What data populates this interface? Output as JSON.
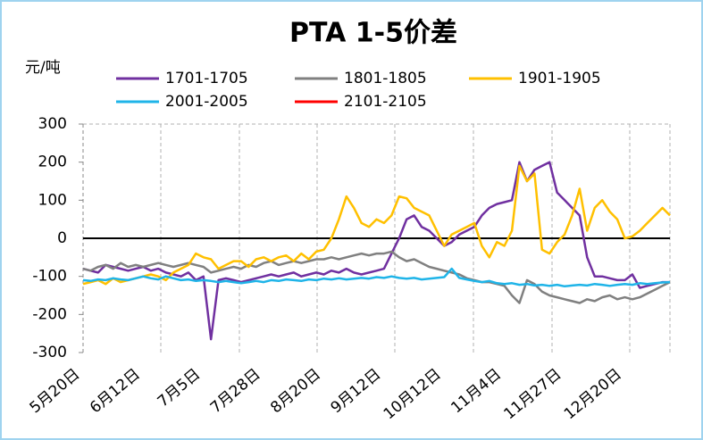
{
  "chart_data": {
    "type": "line",
    "title": "PTA 1-5价差",
    "y_label": "元/吨",
    "categories": [
      "5月20日",
      null,
      null,
      null,
      null,
      null,
      null,
      null,
      "6月12日",
      null,
      null,
      null,
      null,
      null,
      null,
      null,
      "7月5日",
      null,
      null,
      null,
      null,
      null,
      null,
      null,
      "7月28日",
      null,
      null,
      null,
      null,
      null,
      null,
      null,
      "8月20日",
      null,
      null,
      null,
      null,
      null,
      null,
      null,
      "9月12日",
      null,
      null,
      null,
      null,
      null,
      null,
      null,
      "10月12日",
      null,
      null,
      null,
      null,
      null,
      null,
      null,
      "11月4日",
      null,
      null,
      null,
      null,
      null,
      null,
      null,
      "11月27日",
      null,
      null,
      null,
      null,
      null,
      null,
      null,
      "12月20日",
      null,
      null,
      null,
      null,
      null,
      null
    ],
    "series": [
      {
        "name": "1701-1705",
        "color": "#7030a0",
        "values": [
          -80,
          -85,
          -90,
          -70,
          -75,
          -80,
          -85,
          -80,
          -75,
          -85,
          -80,
          -90,
          -95,
          -100,
          -90,
          -110,
          -100,
          -265,
          -110,
          -105,
          -110,
          -115,
          -110,
          -105,
          -100,
          -95,
          -100,
          -95,
          -90,
          -100,
          -95,
          -90,
          -95,
          -85,
          -90,
          -80,
          -90,
          -95,
          -90,
          -85,
          -80,
          -40,
          0,
          50,
          60,
          30,
          20,
          0,
          -20,
          -10,
          10,
          20,
          30,
          60,
          80,
          90,
          95,
          100,
          200,
          150,
          180,
          190,
          200,
          120,
          100,
          80,
          60,
          -50,
          -100,
          -100,
          -105,
          -110,
          -110,
          -95,
          -130,
          -125,
          -120,
          -115,
          -115
        ]
      },
      {
        "name": "1801-1805",
        "color": "#808080",
        "values": [
          -80,
          -85,
          -75,
          -70,
          -80,
          -65,
          -75,
          -70,
          -75,
          -70,
          -65,
          -70,
          -75,
          -70,
          -65,
          -70,
          -75,
          -90,
          -85,
          -80,
          -75,
          -80,
          -70,
          -75,
          -65,
          -60,
          -70,
          -65,
          -60,
          -65,
          -60,
          -55,
          -55,
          -50,
          -55,
          -50,
          -45,
          -40,
          -45,
          -40,
          -40,
          -35,
          -50,
          -60,
          -55,
          -65,
          -75,
          -80,
          -85,
          -90,
          -95,
          -105,
          -110,
          -115,
          -115,
          -120,
          -125,
          -150,
          -170,
          -110,
          -120,
          -140,
          -150,
          -155,
          -160,
          -165,
          -170,
          -160,
          -165,
          -155,
          -150,
          -160,
          -155,
          -160,
          -155,
          -145,
          -135,
          -125,
          -115
        ]
      },
      {
        "name": "1901-1905",
        "color": "#ffc000",
        "values": [
          -120,
          -115,
          -110,
          -120,
          -105,
          -115,
          -110,
          -105,
          -100,
          -95,
          -100,
          -110,
          -90,
          -80,
          -70,
          -40,
          -50,
          -55,
          -80,
          -70,
          -60,
          -60,
          -75,
          -55,
          -50,
          -60,
          -50,
          -45,
          -60,
          -40,
          -55,
          -35,
          -30,
          0,
          50,
          110,
          80,
          40,
          30,
          50,
          40,
          60,
          110,
          105,
          80,
          70,
          60,
          20,
          -20,
          10,
          20,
          30,
          40,
          -20,
          -50,
          -10,
          -20,
          20,
          190,
          150,
          170,
          -30,
          -40,
          -10,
          10,
          60,
          130,
          20,
          80,
          100,
          70,
          50,
          0,
          5,
          20,
          40,
          60,
          80,
          60
        ]
      },
      {
        "name": "2001-2005",
        "color": "#1fb4e8",
        "values": [
          -110,
          -112,
          -108,
          -110,
          -105,
          -108,
          -110,
          -105,
          -100,
          -105,
          -108,
          -100,
          -105,
          -110,
          -108,
          -112,
          -110,
          -112,
          -115,
          -112,
          -115,
          -118,
          -115,
          -112,
          -115,
          -110,
          -112,
          -108,
          -110,
          -112,
          -108,
          -110,
          -106,
          -108,
          -105,
          -108,
          -106,
          -104,
          -106,
          -102,
          -104,
          -100,
          -104,
          -106,
          -104,
          -108,
          -106,
          -104,
          -102,
          -80,
          -104,
          -108,
          -112,
          -115,
          -112,
          -118,
          -120,
          -118,
          -122,
          -120,
          -124,
          -122,
          -125,
          -122,
          -126,
          -124,
          -122,
          -124,
          -120,
          -122,
          -125,
          -122,
          -120,
          -122,
          -118,
          -120,
          -118,
          -116,
          -115
        ]
      },
      {
        "name": "2101-2105",
        "color": "#ff0000",
        "values": [
          null,
          null,
          null,
          null,
          null,
          null,
          null,
          null,
          null,
          null,
          null,
          null,
          null,
          null,
          null,
          null,
          null,
          null,
          null,
          null,
          null,
          null,
          null,
          null,
          null,
          null,
          null,
          null,
          null,
          null,
          null,
          null,
          null,
          null,
          null,
          null,
          null,
          null,
          null,
          null,
          null,
          null,
          null,
          null,
          null,
          null,
          null,
          null,
          null,
          null,
          null,
          null,
          null,
          null,
          null,
          null,
          null,
          null,
          null,
          null,
          null,
          null,
          null,
          null,
          null,
          null,
          null,
          null,
          null,
          null,
          null,
          null,
          null,
          null,
          null,
          null,
          null,
          null,
          null
        ]
      }
    ],
    "ylim": [
      -300,
      300
    ],
    "yticks": [
      -300,
      -200,
      -100,
      0,
      100,
      200,
      300
    ]
  }
}
